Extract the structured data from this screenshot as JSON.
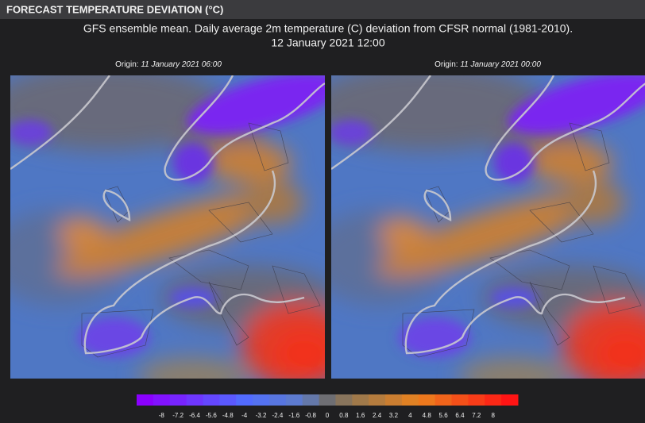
{
  "header": {
    "title": "FORECAST TEMPERATURE DEVIATION (°C)"
  },
  "subtitle": [
    "GFS ensemble mean. Daily average 2m temperature (C) deviation from CFSR normal (1981-2010).",
    "12 January 2021 12:00"
  ],
  "panels": [
    {
      "origin_label": "Origin:",
      "origin_time": "11 January 2021 06:00"
    },
    {
      "origin_label": "Origin:",
      "origin_time": "11 January 2021 00:00"
    }
  ],
  "colorbar": {
    "ticks": [
      -8,
      -7.2,
      -6.4,
      -5.6,
      -4.8,
      -4,
      -3.2,
      -2.4,
      -1.6,
      -0.8,
      0,
      0.8,
      1.6,
      2.4,
      3.2,
      4,
      4.8,
      5.6,
      6.4,
      7.2,
      8
    ]
  }
}
